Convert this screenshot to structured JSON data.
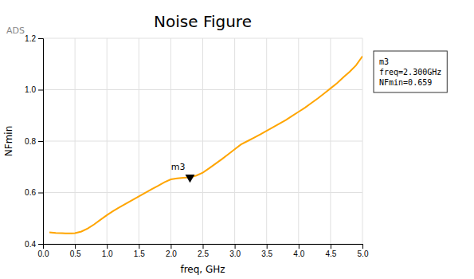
{
  "chart_data": {
    "type": "line",
    "title": "Noise Figure",
    "x_label": "freq, GHz",
    "y_label": "NFmin",
    "color": "#FFA500",
    "grid": true,
    "xlim": [
      0.0,
      5.0
    ],
    "ylim": [
      0.4,
      1.2
    ],
    "xticks": [
      {
        "value": 0.0,
        "label": "0.0"
      },
      0.5,
      {
        "value": 1.0,
        "label": "1.0"
      },
      1.5,
      {
        "value": 2.0,
        "label": "2.0"
      },
      2.5,
      {
        "value": 3.0,
        "label": "3.0"
      },
      3.5,
      {
        "value": 4.0,
        "label": "4.0"
      },
      4.5,
      {
        "value": 5.0,
        "label": "5.0"
      }
    ],
    "yticks": [
      0.4,
      0.6,
      0.8,
      {
        "value": 1.0,
        "label": "1.0"
      },
      1.2
    ],
    "x": [
      0.1,
      0.2,
      0.3,
      0.35,
      0.4,
      0.45,
      0.5,
      0.6,
      0.7,
      0.8,
      0.9,
      1.0,
      1.1,
      1.2,
      1.3,
      1.4,
      1.5,
      1.6,
      1.7,
      1.8,
      1.9,
      2.0,
      2.1,
      2.2,
      2.3,
      2.4,
      2.5,
      2.6,
      2.7,
      2.8,
      2.9,
      3.0,
      3.1,
      3.2,
      3.3,
      3.4,
      3.5,
      3.6,
      3.7,
      3.8,
      3.9,
      4.0,
      4.1,
      4.2,
      4.3,
      4.4,
      4.5,
      4.6,
      4.7,
      4.8,
      4.9,
      5.0
    ],
    "values": [
      0.445,
      0.443,
      0.442,
      0.441,
      0.441,
      0.441,
      0.442,
      0.448,
      0.46,
      0.476,
      0.494,
      0.512,
      0.528,
      0.543,
      0.557,
      0.571,
      0.585,
      0.599,
      0.613,
      0.626,
      0.64,
      0.651,
      0.655,
      0.657,
      0.659,
      0.666,
      0.677,
      0.694,
      0.712,
      0.73,
      0.749,
      0.768,
      0.787,
      0.8,
      0.813,
      0.826,
      0.84,
      0.854,
      0.868,
      0.882,
      0.898,
      0.914,
      0.93,
      0.948,
      0.966,
      0.985,
      1.005,
      1.025,
      1.048,
      1.07,
      1.095,
      1.13
    ],
    "annotations": [
      {
        "text": "ADS"
      },
      {
        "x": 2.3,
        "y": 0.659,
        "text": "m3"
      },
      {
        "text": [
          "m3",
          "freq=2.300GHz",
          "NFmin=0.659"
        ]
      }
    ]
  }
}
